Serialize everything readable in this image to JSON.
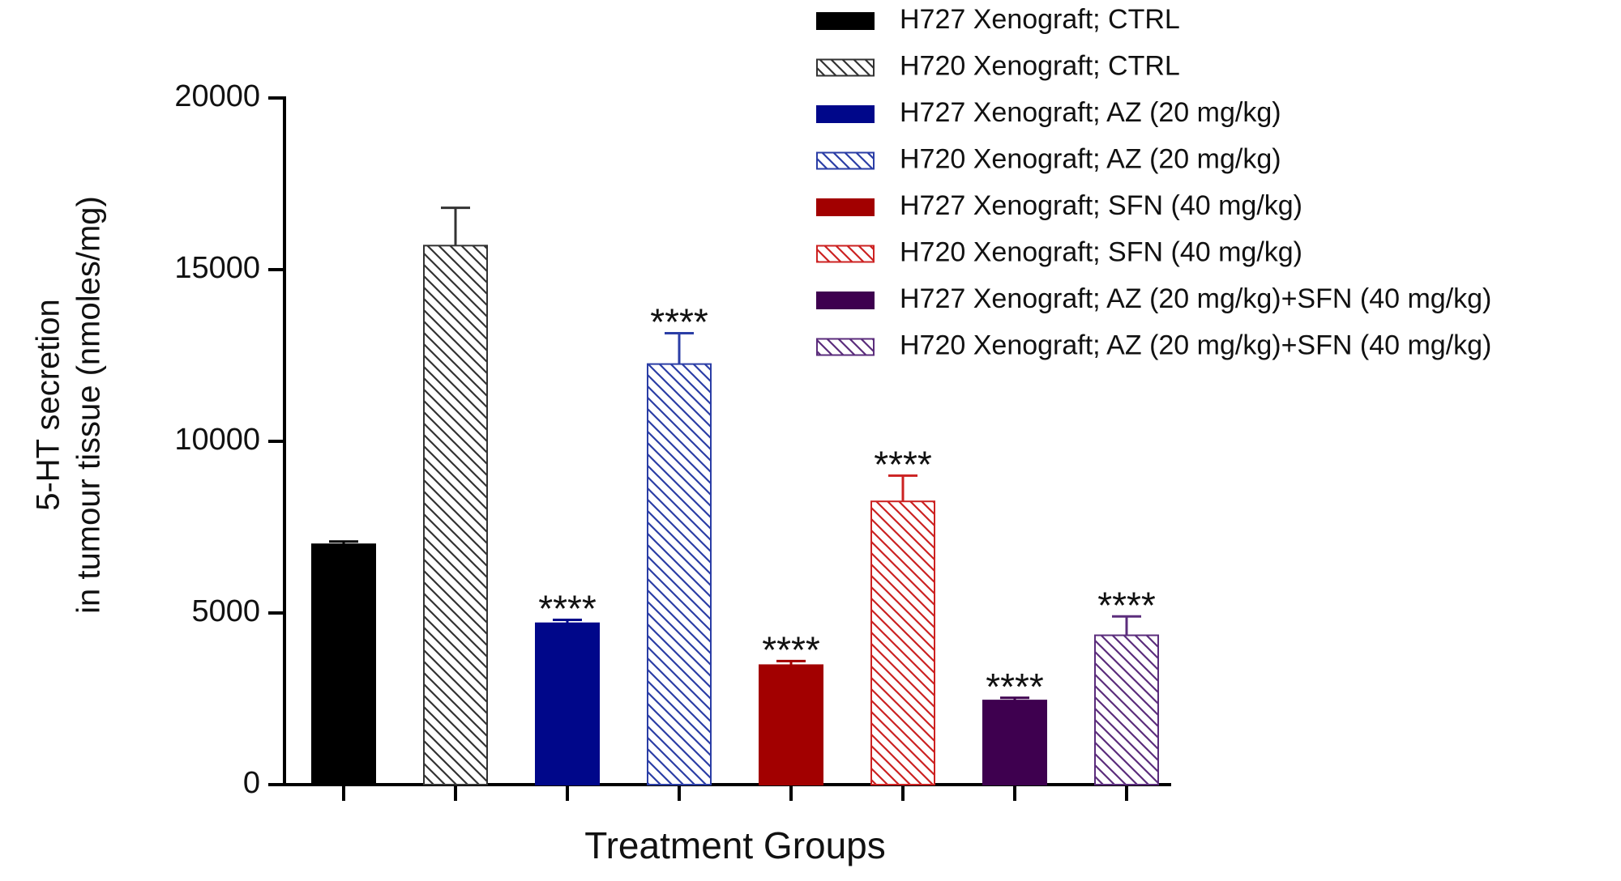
{
  "chart_data": {
    "type": "bar",
    "x_label": "Treatment Groups",
    "y_label": [
      "5-HT secretion",
      "in tumour tissue (nmoles/mg)"
    ],
    "ylim": [
      0,
      20000
    ],
    "yticks": [
      0,
      5000,
      10000,
      15000,
      20000
    ],
    "series": [
      {
        "name": "H727 Xenograft; CTRL",
        "color": "#000000",
        "hatch": false,
        "values": [
          7000
        ],
        "errors": [
          80
        ]
      },
      {
        "name": "H720 Xenograft; CTRL",
        "color": "#333333",
        "hatch": true,
        "values": [
          15700
        ],
        "errors": [
          1100
        ]
      },
      {
        "name": "H727 Xenograft; AZ (20 mg/kg)",
        "color": "#00078a",
        "hatch": false,
        "values": [
          4700
        ],
        "errors": [
          100
        ],
        "annotation": "****"
      },
      {
        "name": "H720 Xenograft; AZ (20 mg/kg)",
        "color": "#2b3ea6",
        "hatch": true,
        "values": [
          12250
        ],
        "errors": [
          900
        ],
        "annotation": "****"
      },
      {
        "name": "H727 Xenograft; SFN (40 mg/kg)",
        "color": "#a20000",
        "hatch": false,
        "values": [
          3480
        ],
        "errors": [
          120
        ],
        "annotation": "****"
      },
      {
        "name": "H720 Xenograft; SFN (40 mg/kg)",
        "color": "#cc2222",
        "hatch": true,
        "values": [
          8250
        ],
        "errors": [
          750
        ],
        "annotation": "****"
      },
      {
        "name": "H727 Xenograft; AZ (20 mg/kg)+SFN (40 mg/kg)",
        "color": "#3e004f",
        "hatch": false,
        "values": [
          2450
        ],
        "errors": [
          80
        ],
        "annotation": "****"
      },
      {
        "name": "H720 Xenograft; AZ (20 mg/kg)+SFN (40 mg/kg)",
        "color": "#5b2d7c",
        "hatch": true,
        "values": [
          4350
        ],
        "errors": [
          550
        ],
        "annotation": "****"
      }
    ]
  }
}
